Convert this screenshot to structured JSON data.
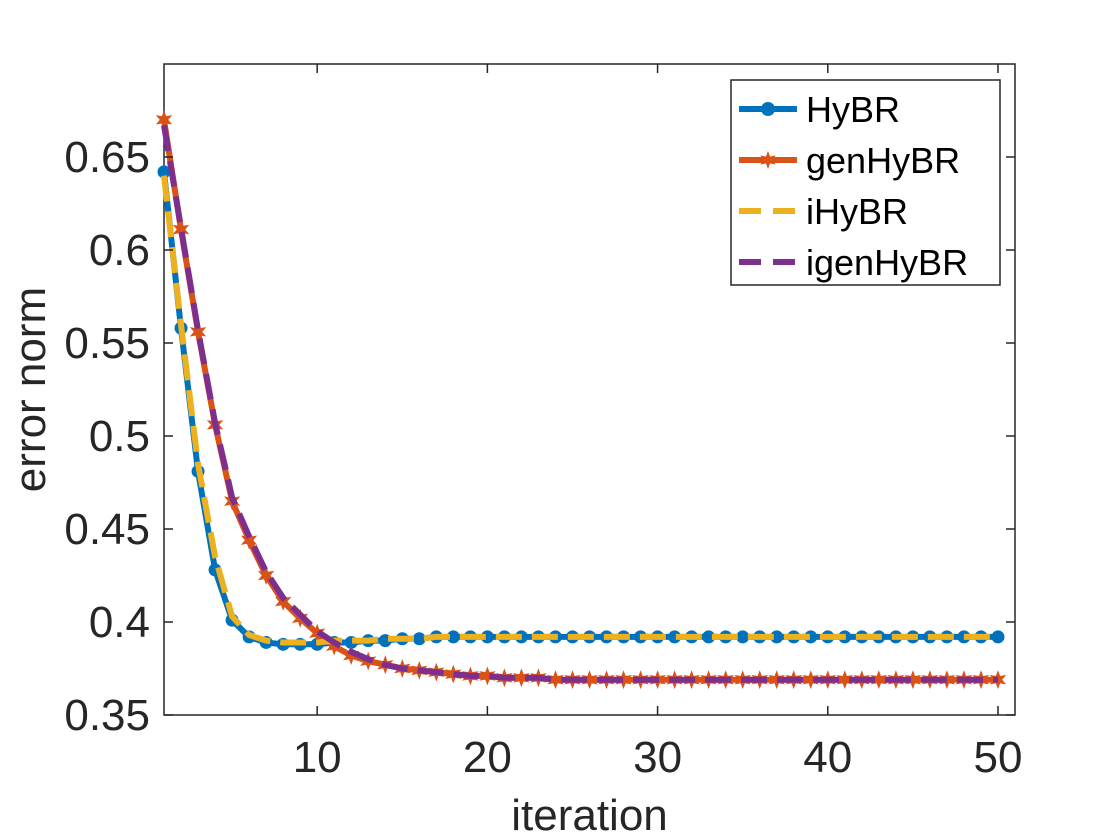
{
  "chart_data": {
    "type": "line",
    "xlabel": "iteration",
    "ylabel": "error norm",
    "xlim": [
      1,
      51
    ],
    "ylim": [
      0.35,
      0.7
    ],
    "xticks": [
      10,
      20,
      30,
      40,
      50
    ],
    "yticks": [
      0.35,
      0.4,
      0.45,
      0.5,
      0.55,
      0.6,
      0.65
    ],
    "ytick_labels": [
      "0.35",
      "0.4",
      "0.45",
      "0.5",
      "0.55",
      "0.6",
      "0.65"
    ],
    "xtick_labels": [
      "10",
      "20",
      "30",
      "40",
      "50"
    ],
    "grid": false,
    "legend_position": "top-right",
    "x": [
      1,
      2,
      3,
      4,
      5,
      6,
      7,
      8,
      9,
      10,
      11,
      12,
      13,
      14,
      15,
      16,
      17,
      18,
      19,
      20,
      21,
      22,
      23,
      24,
      25,
      26,
      27,
      28,
      29,
      30,
      31,
      32,
      33,
      34,
      35,
      36,
      37,
      38,
      39,
      40,
      41,
      42,
      43,
      44,
      45,
      46,
      47,
      48,
      49,
      50
    ],
    "series": [
      {
        "name": "HyBR",
        "color": "#0072BD",
        "style": "solid-dot",
        "values": [
          0.642,
          0.558,
          0.481,
          0.428,
          0.401,
          0.392,
          0.389,
          0.388,
          0.388,
          0.388,
          0.389,
          0.389,
          0.39,
          0.39,
          0.391,
          0.391,
          0.392,
          0.392,
          0.392,
          0.392,
          0.392,
          0.392,
          0.392,
          0.392,
          0.392,
          0.392,
          0.392,
          0.392,
          0.392,
          0.392,
          0.392,
          0.392,
          0.392,
          0.392,
          0.392,
          0.392,
          0.392,
          0.392,
          0.392,
          0.392,
          0.392,
          0.392,
          0.392,
          0.392,
          0.392,
          0.392,
          0.392,
          0.392,
          0.392,
          0.392
        ]
      },
      {
        "name": "genHyBR",
        "color": "#D95319",
        "style": "solid-star",
        "values": [
          0.67,
          0.611,
          0.556,
          0.506,
          0.465,
          0.444,
          0.425,
          0.411,
          0.402,
          0.394,
          0.387,
          0.382,
          0.379,
          0.377,
          0.375,
          0.374,
          0.373,
          0.372,
          0.371,
          0.371,
          0.37,
          0.37,
          0.37,
          0.369,
          0.369,
          0.369,
          0.369,
          0.369,
          0.369,
          0.369,
          0.369,
          0.369,
          0.369,
          0.369,
          0.369,
          0.369,
          0.369,
          0.369,
          0.369,
          0.369,
          0.369,
          0.369,
          0.369,
          0.369,
          0.369,
          0.369,
          0.369,
          0.369,
          0.369,
          0.369
        ]
      },
      {
        "name": "iHyBR",
        "color": "#EDB120",
        "style": "dashed",
        "values": [
          0.64,
          0.56,
          0.485,
          0.435,
          0.403,
          0.393,
          0.39,
          0.389,
          0.389,
          0.389,
          0.39,
          0.39,
          0.39,
          0.391,
          0.391,
          0.391,
          0.392,
          0.392,
          0.392,
          0.392,
          0.392,
          0.392,
          0.392,
          0.392,
          0.392,
          0.392,
          0.392,
          0.392,
          0.392,
          0.392,
          0.392,
          0.392,
          0.392,
          0.392,
          0.392,
          0.392,
          0.392,
          0.392,
          0.392,
          0.392,
          0.392,
          0.392,
          0.392,
          0.392,
          0.392,
          0.392,
          0.392,
          0.392,
          0.392,
          0.392
        ]
      },
      {
        "name": "igenHyBR",
        "color": "#7E2F8E",
        "style": "dashed",
        "values": [
          0.667,
          0.612,
          0.557,
          0.507,
          0.467,
          0.446,
          0.427,
          0.413,
          0.404,
          0.395,
          0.389,
          0.384,
          0.38,
          0.377,
          0.375,
          0.374,
          0.373,
          0.372,
          0.371,
          0.371,
          0.37,
          0.37,
          0.37,
          0.369,
          0.369,
          0.369,
          0.369,
          0.369,
          0.369,
          0.369,
          0.369,
          0.369,
          0.369,
          0.369,
          0.369,
          0.369,
          0.369,
          0.369,
          0.369,
          0.369,
          0.369,
          0.369,
          0.369,
          0.369,
          0.369,
          0.369,
          0.369,
          0.369,
          0.369,
          0.369
        ]
      }
    ]
  }
}
